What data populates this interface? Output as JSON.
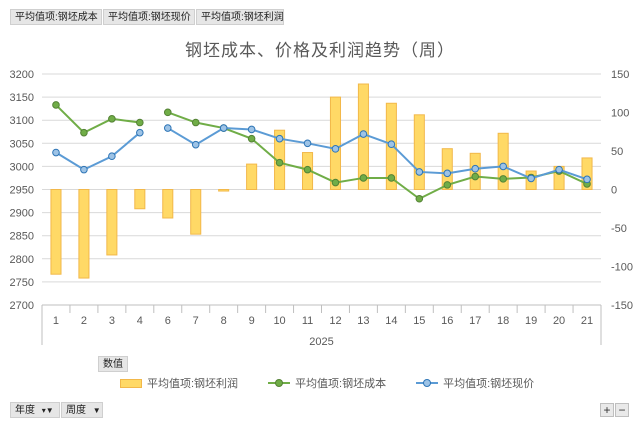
{
  "value_fields": [
    "平均值项:钢坯成本",
    "平均值项:钢坯现价",
    "平均值项:钢坯利润"
  ],
  "values_button": "数值",
  "axis_fields": [
    {
      "label": "年度",
      "icon": "filter-icon"
    },
    {
      "label": "周度",
      "icon": "dropdown-icon"
    }
  ],
  "zoom_buttons": {
    "expand": "+",
    "collapse": "−"
  },
  "colors": {
    "bar": "#ffd966",
    "bar_border": "#f2b84a",
    "cost": "#70ad47",
    "price": "#5b9bd5"
  },
  "chart_data": {
    "type": "bar",
    "title": "钢坯成本、价格及利润趋势（周）",
    "x_group_label": "2025",
    "categories": [
      "1",
      "2",
      "3",
      "4",
      "6",
      "7",
      "8",
      "9",
      "10",
      "11",
      "12",
      "13",
      "14",
      "15",
      "16",
      "17",
      "18",
      "19",
      "20",
      "21"
    ],
    "y_left": {
      "min": 2700,
      "max": 3200,
      "step": 50
    },
    "y_right": {
      "min": -150,
      "max": 150,
      "step": 50
    },
    "grid": true,
    "legend_position": "bottom",
    "series": [
      {
        "name": "平均值项:钢坯利润",
        "type": "bar",
        "axis": "right",
        "values": [
          -110,
          -115,
          -85,
          -25,
          -37,
          -58,
          -2,
          33,
          77,
          48,
          120,
          137,
          112,
          97,
          53,
          47,
          73,
          24,
          30,
          41
        ]
      },
      {
        "name": "平均值项:钢坯成本",
        "type": "line",
        "axis": "left",
        "values": [
          3133,
          3073,
          3103,
          3095,
          3117,
          3095,
          3083,
          3060,
          3008,
          2993,
          2965,
          2975,
          2975,
          2930,
          2960,
          2978,
          2973,
          2976,
          2990,
          2962
        ]
      },
      {
        "name": "平均值项:钢坯现价",
        "type": "line",
        "axis": "left",
        "values": [
          3030,
          2993,
          3022,
          3073,
          3083,
          3047,
          3083,
          3080,
          3060,
          3050,
          3038,
          3070,
          3048,
          2988,
          2985,
          2995,
          3000,
          2974,
          2993,
          2972
        ]
      }
    ]
  }
}
